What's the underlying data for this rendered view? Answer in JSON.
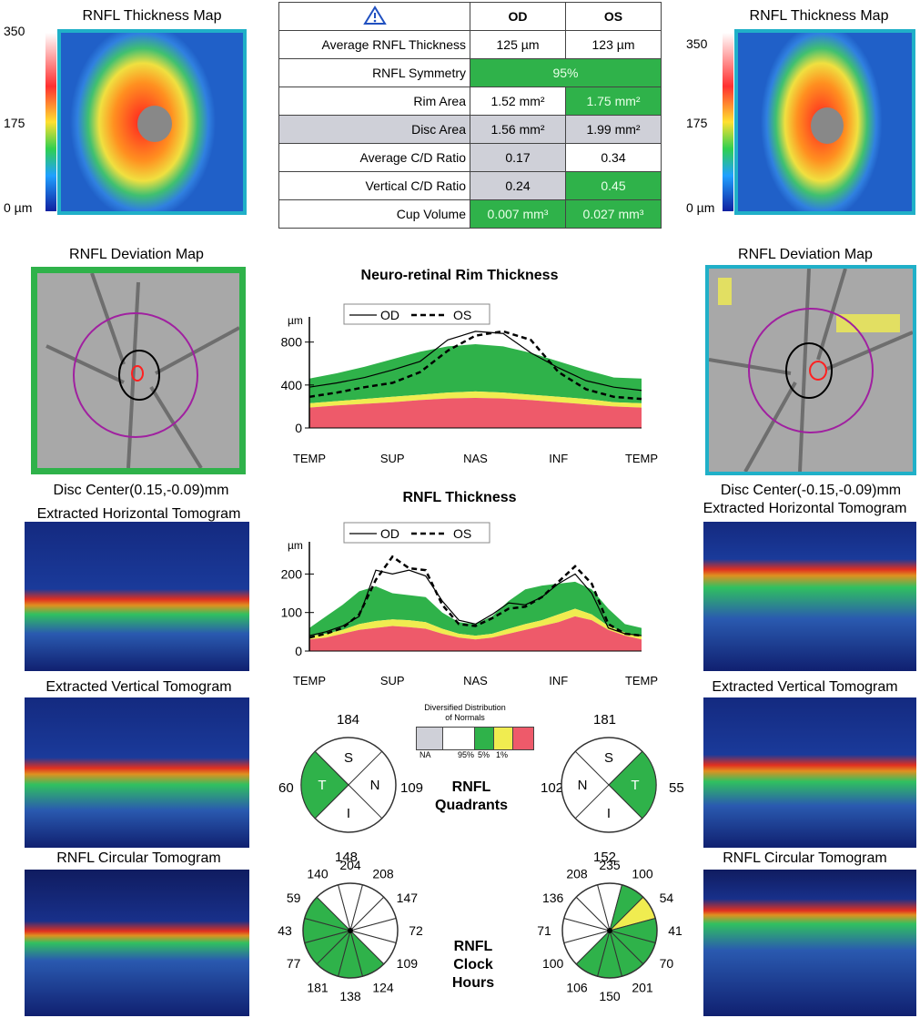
{
  "left": {
    "thickness_map_title": "RNFL Thickness Map",
    "scale": [
      "350",
      "175",
      "0 µm"
    ],
    "deviation_map_title": "RNFL Deviation Map",
    "disc_center": "Disc Center(0.15,-0.09)mm",
    "horizontal_title": "Extracted Horizontal Tomogram",
    "vertical_title": "Extracted Vertical Tomogram",
    "circular_title": "RNFL Circular Tomogram"
  },
  "right": {
    "thickness_map_title": "RNFL Thickness Map",
    "scale": [
      "350",
      "175",
      "0 µm"
    ],
    "deviation_map_title": "RNFL Deviation Map",
    "disc_center": "Disc Center(-0.15,-0.09)mm",
    "horizontal_title": "Extracted Horizontal Tomogram",
    "vertical_title": "Extracted Vertical Tomogram",
    "circular_title": "RNFL Circular Tomogram"
  },
  "table": {
    "head": [
      "OD",
      "OS"
    ],
    "rows": [
      {
        "label": "Average RNFL Thickness",
        "od": "125 µm",
        "os": "123 µm"
      },
      {
        "label": "RNFL Symmetry",
        "both": "95%"
      },
      {
        "label": "Rim Area",
        "od": "1.52 mm²",
        "os": "1.75 mm²"
      },
      {
        "label": "Disc Area",
        "od": "1.56 mm²",
        "os": "1.99 mm²"
      },
      {
        "label": "Average C/D Ratio",
        "od": "0.17",
        "os": "0.34"
      },
      {
        "label": "Vertical C/D Ratio",
        "od": "0.24",
        "os": "0.45"
      },
      {
        "label": "Cup Volume",
        "od": "0.007 mm³",
        "os": "0.027 mm³"
      }
    ]
  },
  "chart_data": [
    {
      "type": "line",
      "title": "Neuro-retinal Rim Thickness",
      "ylabel": "µm",
      "ylim": [
        0,
        950
      ],
      "yticks": [
        0,
        400,
        800
      ],
      "xticks": [
        "TEMP",
        "SUP",
        "NAS",
        "INF",
        "TEMP"
      ],
      "x": [
        0,
        1,
        2,
        3,
        4,
        5,
        6,
        7,
        8,
        9,
        10,
        11,
        12
      ],
      "series": [
        {
          "name": "OD",
          "values": [
            380,
            420,
            470,
            540,
            620,
            820,
            900,
            880,
            700,
            560,
            440,
            380,
            350
          ]
        },
        {
          "name": "OS",
          "values": [
            290,
            330,
            380,
            420,
            520,
            720,
            860,
            900,
            820,
            520,
            360,
            290,
            270
          ]
        }
      ],
      "bands": {
        "p1": [
          190,
          210,
          225,
          240,
          260,
          275,
          280,
          275,
          260,
          240,
          220,
          200,
          190
        ],
        "p5": [
          230,
          250,
          270,
          290,
          310,
          330,
          340,
          330,
          310,
          290,
          270,
          240,
          230
        ],
        "p95": [
          460,
          510,
          570,
          640,
          710,
          760,
          780,
          760,
          700,
          620,
          540,
          470,
          460
        ]
      }
    },
    {
      "type": "line",
      "title": "RNFL Thickness",
      "ylabel": "µm",
      "ylim": [
        0,
        260
      ],
      "yticks": [
        0,
        100,
        200
      ],
      "xticks": [
        "TEMP",
        "SUP",
        "NAS",
        "INF",
        "TEMP"
      ],
      "x": [
        0,
        1,
        2,
        3,
        4,
        5,
        6,
        7,
        8,
        9,
        10,
        11,
        12,
        13,
        14,
        15,
        16,
        17,
        18,
        19,
        20
      ],
      "series": [
        {
          "name": "OD",
          "values": [
            40,
            50,
            65,
            90,
            210,
            200,
            210,
            195,
            130,
            80,
            70,
            95,
            125,
            120,
            140,
            175,
            200,
            150,
            60,
            45,
            40
          ]
        },
        {
          "name": "OS",
          "values": [
            35,
            45,
            60,
            95,
            185,
            245,
            215,
            210,
            120,
            70,
            65,
            85,
            110,
            115,
            140,
            180,
            220,
            175,
            70,
            45,
            40
          ]
        }
      ],
      "bands": {
        "p1": [
          30,
          35,
          45,
          55,
          60,
          65,
          62,
          58,
          45,
          35,
          30,
          35,
          45,
          55,
          65,
          75,
          90,
          80,
          55,
          40,
          30
        ],
        "p5": [
          38,
          45,
          55,
          70,
          78,
          82,
          80,
          75,
          58,
          45,
          40,
          45,
          58,
          70,
          80,
          95,
          110,
          95,
          65,
          48,
          38
        ],
        "p95": [
          60,
          90,
          120,
          155,
          168,
          150,
          145,
          140,
          100,
          75,
          70,
          90,
          130,
          160,
          170,
          175,
          180,
          160,
          110,
          70,
          60
        ]
      }
    }
  ],
  "legend": {
    "od": "OD",
    "os": "OS"
  },
  "normals_legend": {
    "title": "Diversified Distribution of Normals",
    "labels": [
      "NA",
      "95%",
      "5%",
      "1%"
    ]
  },
  "quadrants": {
    "title": "RNFL Quadrants",
    "od": {
      "s": "184",
      "n": "109",
      "i": "148",
      "t": "60",
      "letters": [
        "S",
        "N",
        "I",
        "T"
      ]
    },
    "os": {
      "s": "181",
      "n": "102",
      "i": "152",
      "t": "55",
      "letters": [
        "S",
        "N",
        "I",
        "T"
      ]
    }
  },
  "clock_hours": {
    "title": "RNFL Clock Hours",
    "od": [
      "204",
      "208",
      "147",
      "72",
      "109",
      "124",
      "138",
      "181",
      "77",
      "43",
      "59",
      "140"
    ],
    "os": [
      "235",
      "100",
      "54",
      "41",
      "70",
      "201",
      "150",
      "106",
      "100",
      "71",
      "136",
      "208"
    ],
    "od_colors": [
      "#fff",
      "#fff",
      "#fff",
      "#fff",
      "#fff",
      "#2fb24a",
      "#2fb24a",
      "#2fb24a",
      "#2fb24a",
      "#2fb24a",
      "#2fb24a",
      "#fff"
    ],
    "os_colors": [
      "#fff",
      "#2fb24a",
      "#f0ec50",
      "#2fb24a",
      "#2fb24a",
      "#2fb24a",
      "#2fb24a",
      "#2fb24a",
      "#fff",
      "#fff",
      "#fff",
      "#fff"
    ]
  },
  "colors": {
    "green": "#2fb24a",
    "yellow": "#f0ec50",
    "red": "#ee5a6a",
    "gray": "#cfd0d8",
    "accent": "#20b0c8"
  }
}
